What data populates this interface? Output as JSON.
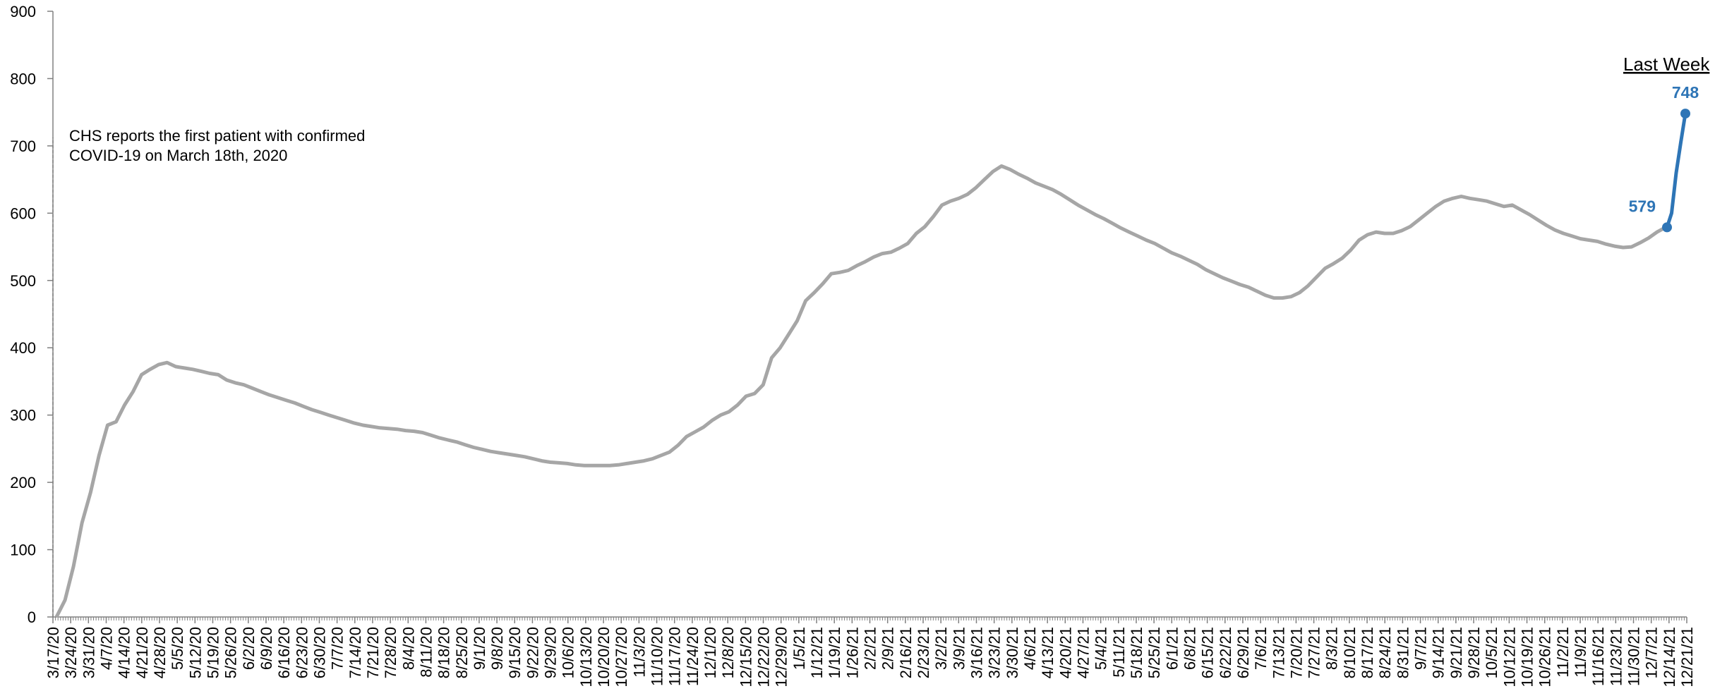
{
  "chart_data": {
    "type": "line",
    "title": "",
    "xlabel": "",
    "ylabel": "",
    "ylim": [
      0,
      900
    ],
    "y_ticks": [
      "0",
      "100",
      "200",
      "300",
      "400",
      "500",
      "600",
      "700",
      "800",
      "900"
    ],
    "x_tick_labels": [
      "3/17/20",
      "3/24/20",
      "3/31/20",
      "4/7/20",
      "4/14/20",
      "4/21/20",
      "4/28/20",
      "5/5/20",
      "5/12/20",
      "5/19/20",
      "5/26/20",
      "6/2/20",
      "6/9/20",
      "6/16/20",
      "6/23/20",
      "6/30/20",
      "7/7/20",
      "7/14/20",
      "7/21/20",
      "7/28/20",
      "8/4/20",
      "8/11/20",
      "8/18/20",
      "8/25/20",
      "9/1/20",
      "9/8/20",
      "9/15/20",
      "9/22/20",
      "9/29/20",
      "10/6/20",
      "10/13/20",
      "10/20/20",
      "10/27/20",
      "11/3/20",
      "11/10/20",
      "11/17/20",
      "11/24/20",
      "12/1/20",
      "12/8/20",
      "12/15/20",
      "12/22/20",
      "12/29/20",
      "1/5/21",
      "1/12/21",
      "1/19/21",
      "1/26/21",
      "2/2/21",
      "2/9/21",
      "2/16/21",
      "2/23/21",
      "3/2/21",
      "3/9/21",
      "3/16/21",
      "3/23/21",
      "3/30/21",
      "4/6/21",
      "4/13/21",
      "4/20/21",
      "4/27/21",
      "5/4/21",
      "5/11/21",
      "5/18/21",
      "5/25/21",
      "6/1/21",
      "6/8/21",
      "6/15/21",
      "6/22/21",
      "6/29/21",
      "7/6/21",
      "7/13/21",
      "7/20/21",
      "7/27/21",
      "8/3/21",
      "8/10/21",
      "8/17/21",
      "8/24/21",
      "8/31/21",
      "9/7/21",
      "9/14/21",
      "9/21/21",
      "9/28/21",
      "10/5/21",
      "10/12/21",
      "10/19/21",
      "10/26/21",
      "11/2/21",
      "11/9/21",
      "11/16/21",
      "11/23/21",
      "11/30/21",
      "12/7/21",
      "12/14/21",
      "12/21/21"
    ],
    "series": [
      {
        "color": "#a6a6a6",
        "values": [
          0,
          25,
          75,
          140,
          185,
          240,
          285,
          290,
          315,
          335,
          360,
          368,
          375,
          378,
          372,
          370,
          368,
          365,
          362,
          360,
          352,
          348,
          345,
          340,
          335,
          330,
          326,
          322,
          318,
          313,
          308,
          304,
          300,
          296,
          292,
          288,
          285,
          283,
          281,
          280,
          279,
          277,
          276,
          274,
          270,
          266,
          263,
          260,
          256,
          252,
          249,
          246,
          244,
          242,
          240,
          238,
          235,
          232,
          230,
          229,
          228,
          226,
          225,
          225,
          225,
          225,
          226,
          228,
          230,
          232,
          235,
          240,
          245,
          255,
          268,
          275,
          282,
          292,
          300,
          305,
          315,
          328,
          332,
          345,
          385,
          400,
          420,
          440,
          470,
          482,
          495,
          510,
          512,
          515,
          522,
          528,
          535,
          540,
          542,
          548,
          555,
          570,
          580,
          595,
          612,
          618,
          622,
          628,
          638,
          650,
          662,
          670,
          665,
          658,
          652,
          645,
          640,
          635,
          628,
          620,
          612,
          605,
          598,
          592,
          585,
          578,
          572,
          566,
          560,
          555,
          548,
          541,
          536,
          530,
          524,
          516,
          510,
          504,
          499,
          494,
          490,
          484,
          478,
          474,
          474,
          476,
          482,
          492,
          505,
          518,
          525,
          533,
          545,
          560,
          568,
          572,
          570,
          570,
          574,
          580,
          590,
          600,
          610,
          618,
          622,
          625,
          622,
          620,
          618,
          614,
          610,
          612,
          605,
          598,
          590,
          582,
          575,
          570,
          566,
          562,
          560,
          558,
          554,
          551,
          549,
          550,
          556,
          563,
          572,
          579
        ]
      },
      {
        "color": "#2e75b6",
        "values": [
          579,
          600,
          660,
          705,
          748
        ]
      }
    ],
    "annotations": {
      "note_line1": "CHS reports the first patient with confirmed",
      "note_line2": "COVID-19 on March 18th, 2020",
      "last_week": "Last Week",
      "start_value": "579",
      "end_value": "748"
    }
  }
}
